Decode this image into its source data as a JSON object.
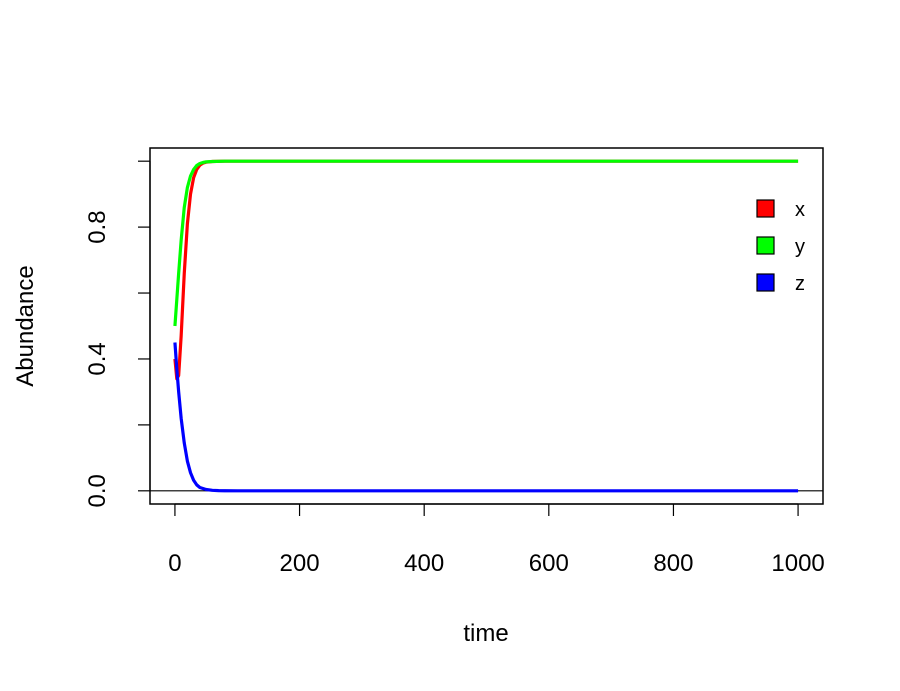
{
  "chart_data": {
    "type": "line",
    "title": "",
    "xlabel": "time",
    "ylabel": "Abundance",
    "xlim": [
      -40,
      1040
    ],
    "ylim": [
      -0.04,
      1.04
    ],
    "xticks": [
      0,
      200,
      400,
      600,
      800,
      1000
    ],
    "yticks": [
      0.0,
      0.2,
      0.4,
      0.6,
      0.8,
      1.0
    ],
    "yticks_labeled": [
      "0.0",
      "0.4",
      "0.8"
    ],
    "grid": false,
    "legend_position": "top-right",
    "reference_line_y": 0,
    "series": [
      {
        "name": "x",
        "color": "#ff0000",
        "x": [
          0,
          3,
          6,
          10,
          15,
          20,
          25,
          30,
          35,
          40,
          45,
          50,
          60,
          80,
          100,
          200,
          400,
          600,
          800,
          1000
        ],
        "y": [
          0.4,
          0.34,
          0.35,
          0.47,
          0.66,
          0.81,
          0.9,
          0.95,
          0.975,
          0.988,
          0.994,
          0.997,
          0.999,
          1.0,
          1.0,
          1.0,
          1.0,
          1.0,
          1.0,
          1.0
        ]
      },
      {
        "name": "y",
        "color": "#00ff00",
        "x": [
          0,
          3,
          6,
          10,
          15,
          20,
          25,
          30,
          35,
          40,
          45,
          50,
          60,
          80,
          100,
          200,
          400,
          600,
          800,
          1000
        ],
        "y": [
          0.5,
          0.58,
          0.66,
          0.76,
          0.86,
          0.92,
          0.955,
          0.975,
          0.987,
          0.993,
          0.996,
          0.998,
          0.999,
          1.0,
          1.0,
          1.0,
          1.0,
          1.0,
          1.0,
          1.0
        ]
      },
      {
        "name": "z",
        "color": "#0000ff",
        "x": [
          0,
          3,
          6,
          10,
          15,
          20,
          25,
          30,
          35,
          40,
          50,
          60,
          70,
          80,
          100,
          200,
          400,
          600,
          800,
          1000
        ],
        "y": [
          0.45,
          0.37,
          0.3,
          0.22,
          0.145,
          0.09,
          0.055,
          0.032,
          0.018,
          0.01,
          0.004,
          0.0015,
          0.0006,
          0.0002,
          0.0,
          0.0,
          0.0,
          0.0,
          0.0,
          0.0
        ]
      }
    ]
  }
}
